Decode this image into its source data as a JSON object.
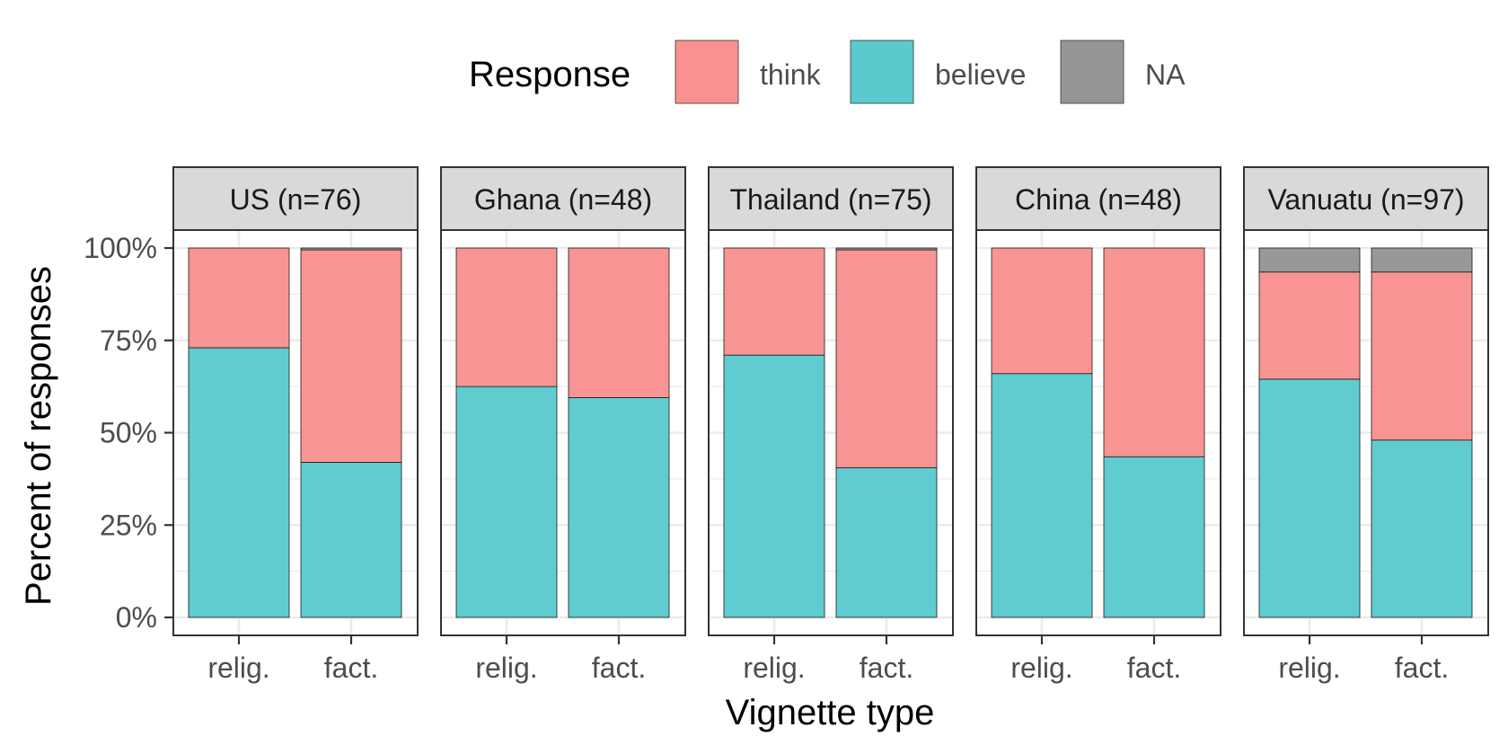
{
  "colors": {
    "think": "#F8918F",
    "believe": "#5BCACE",
    "NA": "#959595",
    "strip_bg": "#D9D9D9",
    "grid": "#EBEBEB",
    "border": "#333333"
  },
  "legend": {
    "title": "Response",
    "items": [
      {
        "key": "think",
        "label": "think"
      },
      {
        "key": "believe",
        "label": "believe"
      },
      {
        "key": "NA",
        "label": "NA"
      }
    ]
  },
  "axes": {
    "xlabel": "Vignette type",
    "ylabel": "Percent of responses"
  },
  "chart_data": {
    "type": "bar",
    "stacked": true,
    "facets": [
      "US (n=76)",
      "Ghana (n=48)",
      "Thailand (n=75)",
      "China (n=48)",
      "Vanuatu (n=97)"
    ],
    "categories": [
      "relig.",
      "fact."
    ],
    "ylim": [
      0,
      1
    ],
    "yticks": [
      0,
      0.25,
      0.5,
      0.75,
      1.0
    ],
    "ytick_labels": [
      "0%",
      "25%",
      "50%",
      "75%",
      "100%"
    ],
    "series_order": [
      "believe",
      "think",
      "NA"
    ],
    "panels": [
      {
        "facet": "US (n=76)",
        "bars": [
          {
            "category": "relig.",
            "believe": 0.73,
            "think": 0.27,
            "NA": 0.0
          },
          {
            "category": "fact.",
            "believe": 0.42,
            "think": 0.575,
            "NA": 0.005
          }
        ]
      },
      {
        "facet": "Ghana (n=48)",
        "bars": [
          {
            "category": "relig.",
            "believe": 0.625,
            "think": 0.375,
            "NA": 0.0
          },
          {
            "category": "fact.",
            "believe": 0.595,
            "think": 0.405,
            "NA": 0.0
          }
        ]
      },
      {
        "facet": "Thailand (n=75)",
        "bars": [
          {
            "category": "relig.",
            "believe": 0.71,
            "think": 0.29,
            "NA": 0.0
          },
          {
            "category": "fact.",
            "believe": 0.405,
            "think": 0.59,
            "NA": 0.005
          }
        ]
      },
      {
        "facet": "China (n=48)",
        "bars": [
          {
            "category": "relig.",
            "believe": 0.66,
            "think": 0.34,
            "NA": 0.0
          },
          {
            "category": "fact.",
            "believe": 0.435,
            "think": 0.565,
            "NA": 0.0
          }
        ]
      },
      {
        "facet": "Vanuatu (n=97)",
        "bars": [
          {
            "category": "relig.",
            "believe": 0.645,
            "think": 0.29,
            "NA": 0.065
          },
          {
            "category": "fact.",
            "believe": 0.48,
            "think": 0.455,
            "NA": 0.065
          }
        ]
      }
    ]
  }
}
